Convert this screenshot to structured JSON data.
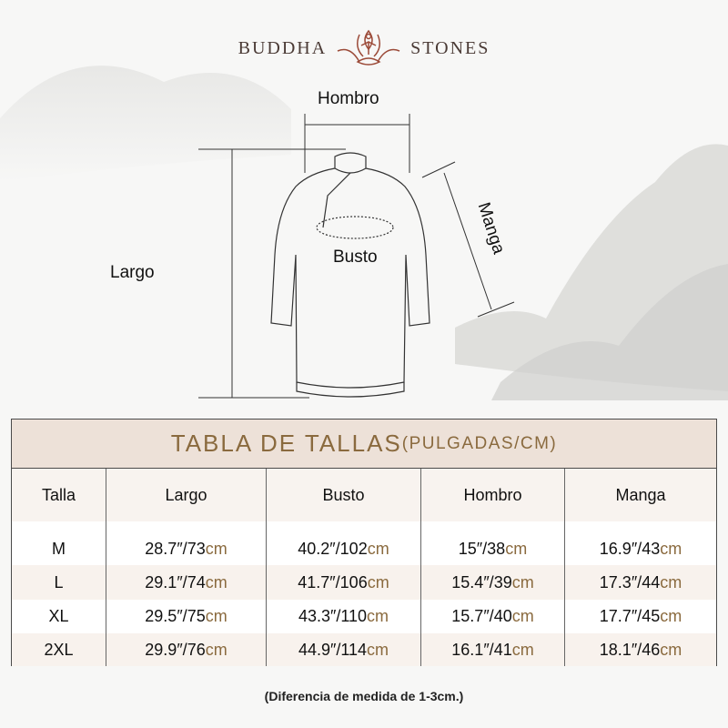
{
  "brand": {
    "left": "BUDDHA",
    "right": "STONES",
    "logo_icon": "lotus-meditation-icon",
    "color": "#9b4a38"
  },
  "diagram": {
    "hombro": "Hombro",
    "manga": "Manga",
    "busto": "Busto",
    "largo": "Largo"
  },
  "table": {
    "title": "TABLA DE TALLAS",
    "title_units": "(PULGADAS/CM)",
    "headers": [
      "Talla",
      "Largo",
      "Busto",
      "Hombro",
      "Manga"
    ],
    "rows": [
      {
        "size": "M",
        "cells": [
          [
            "28.7″/73",
            "cm"
          ],
          [
            "40.2″/102",
            "cm"
          ],
          [
            "15″/38",
            "cm"
          ],
          [
            "16.9″/43",
            "cm"
          ]
        ]
      },
      {
        "size": "L",
        "cells": [
          [
            "29.1″/74",
            "cm"
          ],
          [
            "41.7″/106",
            "cm"
          ],
          [
            "15.4″/39",
            "cm"
          ],
          [
            "17.3″/44",
            "cm"
          ]
        ]
      },
      {
        "size": "XL",
        "cells": [
          [
            "29.5″/75",
            "cm"
          ],
          [
            "43.3″/110",
            "cm"
          ],
          [
            "15.7″/40",
            "cm"
          ],
          [
            "17.7″/45",
            "cm"
          ]
        ]
      },
      {
        "size": "2XL",
        "cells": [
          [
            "29.9″/76",
            "cm"
          ],
          [
            "44.9″/114",
            "cm"
          ],
          [
            "16.1″/41",
            "cm"
          ],
          [
            "18.1″/46",
            "cm"
          ]
        ]
      }
    ],
    "accent": "#8a6a3e"
  },
  "note": "(Diferencia de medida de 1-3cm.)"
}
